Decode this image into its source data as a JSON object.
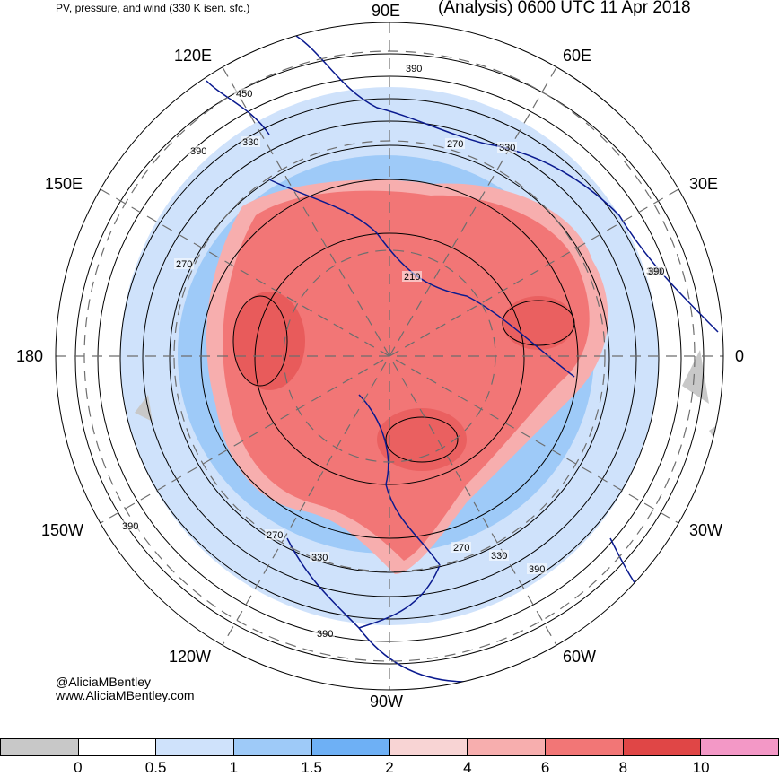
{
  "header": {
    "subtitle": "PV, pressure, and wind (330 K isen. sfc.)",
    "valid": "(Analysis) 0600 UTC 11 Apr 2018"
  },
  "map": {
    "projection": "north-polar-stereographic",
    "longitude_labels": [
      "90E",
      "60E",
      "30E",
      "0",
      "30W",
      "60W",
      "90W",
      "120W",
      "150W",
      "180",
      "150E",
      "120E"
    ],
    "contour_labels": [
      "390",
      "450",
      "330",
      "390",
      "270",
      "330",
      "390",
      "270",
      "210",
      "390",
      "270",
      "330",
      "390",
      "270",
      "390",
      "330",
      "390"
    ],
    "colors": {
      "coastline": "#0a1a8f",
      "contour": "#000000",
      "graticule": "#6e6e6e",
      "pv_high": "#ee6e6e",
      "pv_mid": "#f6a8a8",
      "pv_low": "#93c3f4"
    }
  },
  "credits": {
    "handle": "@AliciaMBentley",
    "website": "www.AliciaMBentley.com"
  },
  "colorbar": {
    "colors": [
      "#c8c8c8",
      "#ffffff",
      "#cfe2fb",
      "#9ecaf8",
      "#6eb0f5",
      "#f8d4d4",
      "#f7aeae",
      "#f27676",
      "#e04646",
      "#f398c6"
    ],
    "ticks": [
      "0",
      "0.5",
      "1",
      "1.5",
      "2",
      "4",
      "6",
      "8",
      "10"
    ]
  }
}
